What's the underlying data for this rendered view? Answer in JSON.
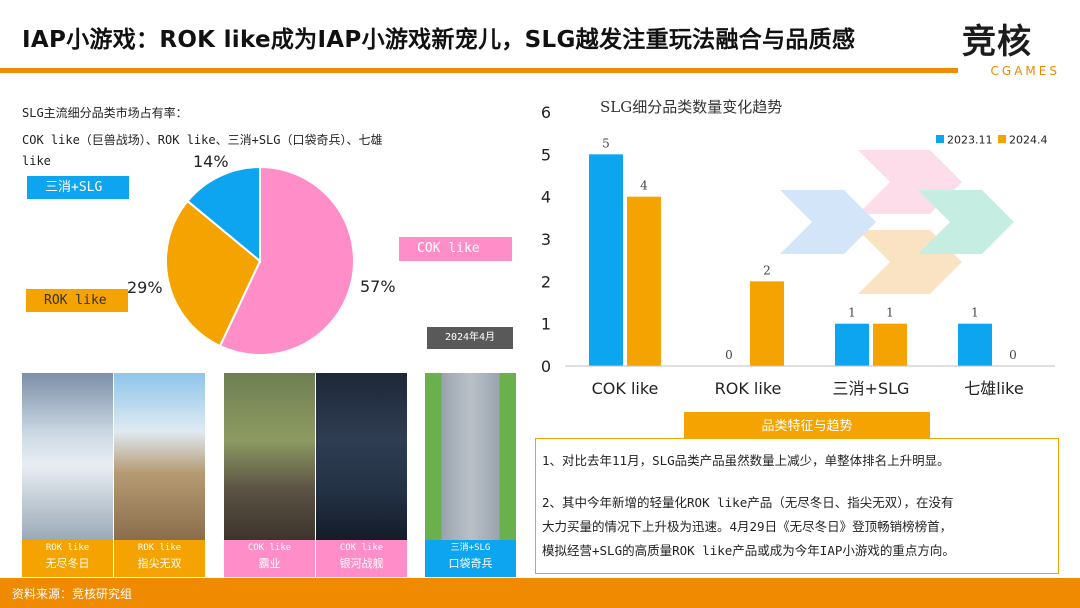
{
  "header": {
    "title": "IAP小游戏：ROK like成为IAP小游戏新宠儿，SLG越发注重玩法融合与品质感",
    "logo_main": "竞核",
    "logo_sub": "CGAMES"
  },
  "summary": {
    "line1": "SLG主流细分品类市场占有率：",
    "line2": "COK like（巨兽战场）、ROK like、三消+SLG（口袋奇兵）、七雄",
    "line3": "like"
  },
  "pie": {
    "labels": {
      "sanxiao": "三消+SLG",
      "cok": "COK like",
      "rok": "ROK like"
    },
    "date_tag": "2024年4月",
    "colors": {
      "cok": "#ff8ec8",
      "rok": "#f5a300",
      "sanxiao": "#0ea5f0"
    }
  },
  "chart_data": [
    {
      "type": "pie",
      "categories": [
        "COK like",
        "ROK like",
        "三消+SLG"
      ],
      "values": [
        57,
        29,
        14
      ],
      "value_labels": [
        "57%",
        "29%",
        "14%"
      ]
    },
    {
      "type": "bar",
      "title": "SLG细分品类数量变化趋势",
      "categories": [
        "COK like",
        "ROK like",
        "三消+SLG",
        "七雄like"
      ],
      "series": [
        {
          "name": "2023.11",
          "values": [
            5,
            0,
            1,
            1
          ],
          "color": "#0ea5f0"
        },
        {
          "name": "2024.4",
          "values": [
            4,
            2,
            1,
            0
          ],
          "color": "#f5a300"
        }
      ],
      "yticks": [
        "0",
        "1",
        "2",
        "3",
        "4",
        "5",
        "6"
      ],
      "ylim": [
        0,
        6
      ],
      "legend": "top-right"
    }
  ],
  "screenshots": [
    {
      "tag": "ROK like",
      "name": "无尽冬日",
      "cap_color": "#f5a300"
    },
    {
      "tag": "ROK like",
      "name": "指尖无双",
      "cap_color": "#f5a300"
    },
    {
      "tag": "COK like",
      "name": "霸业",
      "cap_color": "#ff8ec8"
    },
    {
      "tag": "COK like",
      "name": "银河战舰",
      "cap_color": "#ff8ec8"
    },
    {
      "tag": "三消+SLG",
      "name": "口袋奇兵",
      "cap_color": "#0ea5f0"
    }
  ],
  "features": {
    "heading": "品类特征与趋势",
    "p1": "1、对比去年11月，SLG品类产品虽然数量上减少，单整体排名上升明显。",
    "p2_l1": "2、其中今年新增的轻量化ROK like产品（无尽冬日、指尖无双），在没有",
    "p2_l2": "大力买量的情况下上升极为迅速。4月29日《无尽冬日》登顶畅销榜榜首，",
    "p2_l3": "模拟经营+SLG的高质量ROK like产品或成为今年IAP小游戏的重点方向。"
  },
  "footer": {
    "source": "资料来源：竞核研究组"
  }
}
